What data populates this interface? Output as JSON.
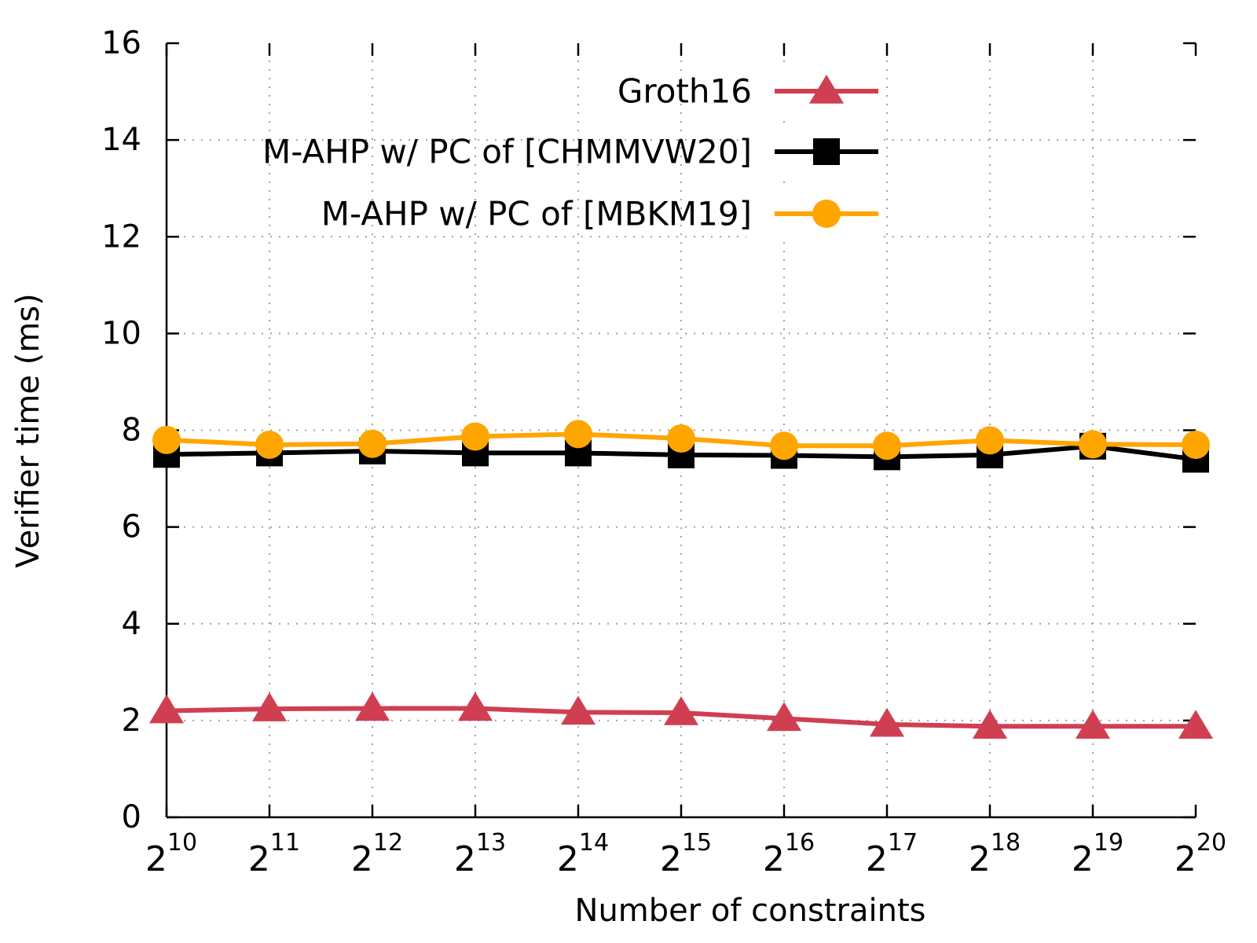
{
  "chart_data": {
    "type": "line",
    "xlabel": "Number of constraints",
    "ylabel": "Verifier time (ms)",
    "ylim": [
      0,
      16
    ],
    "y_ticks": [
      "0",
      "2",
      "4",
      "6",
      "8",
      "10",
      "12",
      "14",
      "16"
    ],
    "x_ticks": [
      {
        "base": "2",
        "exp": "10"
      },
      {
        "base": "2",
        "exp": "11"
      },
      {
        "base": "2",
        "exp": "12"
      },
      {
        "base": "2",
        "exp": "13"
      },
      {
        "base": "2",
        "exp": "14"
      },
      {
        "base": "2",
        "exp": "15"
      },
      {
        "base": "2",
        "exp": "16"
      },
      {
        "base": "2",
        "exp": "17"
      },
      {
        "base": "2",
        "exp": "18"
      },
      {
        "base": "2",
        "exp": "19"
      },
      {
        "base": "2",
        "exp": "20"
      }
    ],
    "grid": true,
    "legend_position": "top-right",
    "series": [
      {
        "name": "Groth16",
        "color": "#d03f51",
        "marker": "triangle",
        "values": [
          2.2,
          2.24,
          2.25,
          2.25,
          2.17,
          2.16,
          2.04,
          1.92,
          1.88,
          1.88,
          1.88
        ]
      },
      {
        "name": "M-AHP w/ PC of [CHMMVW20]",
        "color": "#000000",
        "marker": "square",
        "values": [
          7.5,
          7.53,
          7.57,
          7.53,
          7.53,
          7.49,
          7.48,
          7.45,
          7.49,
          7.67,
          7.4
        ]
      },
      {
        "name": "M-AHP w/ PC of [MBKM19]",
        "color": "#ffa500",
        "marker": "circle",
        "values": [
          7.8,
          7.7,
          7.72,
          7.87,
          7.92,
          7.83,
          7.68,
          7.68,
          7.79,
          7.71,
          7.7
        ]
      }
    ]
  }
}
